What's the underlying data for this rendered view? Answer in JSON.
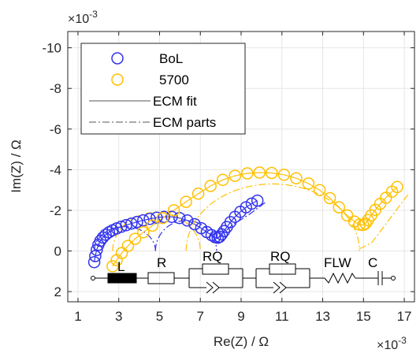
{
  "chart_data": {
    "type": "scatter",
    "title": "",
    "xlabel": "Re(Z)  /  Ω",
    "ylabel": "Im(Z)  /  Ω",
    "x_exponent_label": "×10",
    "x_exponent_power": "-3",
    "y_exponent_label": "×10",
    "y_exponent_power": "-3",
    "xlim": [
      0.5,
      17.5
    ],
    "ylim": [
      2.5,
      -10.8
    ],
    "y_reversed": true,
    "grid": true,
    "legend_position": "top-left",
    "xticks": [
      1,
      3,
      5,
      7,
      9,
      11,
      13,
      15,
      17
    ],
    "xtick_labels": [
      "1",
      "3",
      "5",
      "7",
      "9",
      "11",
      "13",
      "15",
      "17"
    ],
    "yticks": [
      2,
      0,
      -2,
      -4,
      -6,
      -8,
      -10
    ],
    "ytick_labels": [
      "2",
      "0",
      "-2",
      "-4",
      "-6",
      "-8",
      "-10"
    ],
    "series": [
      {
        "name": "BoL",
        "marker": "circle",
        "color": "#3333ee",
        "x": [
          1.8,
          1.85,
          1.92,
          2.0,
          2.1,
          2.22,
          2.36,
          2.52,
          2.7,
          2.9,
          3.12,
          3.36,
          3.62,
          3.9,
          4.2,
          4.52,
          4.86,
          5.22,
          5.6,
          5.98,
          6.36,
          6.72,
          7.04,
          7.32,
          7.55,
          7.72,
          7.85,
          7.95,
          8.05,
          8.16,
          8.3,
          8.48,
          8.7,
          8.96,
          9.24,
          9.52,
          9.8
        ],
        "y": [
          0.55,
          0.25,
          -0.05,
          -0.3,
          -0.5,
          -0.66,
          -0.8,
          -0.92,
          -1.02,
          -1.11,
          -1.19,
          -1.27,
          -1.35,
          -1.43,
          -1.51,
          -1.58,
          -1.64,
          -1.68,
          -1.68,
          -1.62,
          -1.5,
          -1.32,
          -1.12,
          -0.93,
          -0.78,
          -0.68,
          -0.65,
          -0.7,
          -0.82,
          -0.98,
          -1.18,
          -1.42,
          -1.68,
          -1.93,
          -2.15,
          -2.33,
          -2.48
        ]
      },
      {
        "name": "5700",
        "marker": "circle",
        "color": "#ffc000",
        "x": [
          2.7,
          2.9,
          3.15,
          3.45,
          3.8,
          4.2,
          4.65,
          5.15,
          5.7,
          6.3,
          6.9,
          7.5,
          8.1,
          8.7,
          9.3,
          9.9,
          10.5,
          11.1,
          11.7,
          12.3,
          12.85,
          13.35,
          13.8,
          14.2,
          14.55,
          14.8,
          14.98,
          15.1,
          15.22,
          15.38,
          15.58,
          15.82,
          16.1,
          16.4,
          16.65
        ],
        "y": [
          0.75,
          0.45,
          0.1,
          -0.25,
          -0.6,
          -0.92,
          -1.25,
          -1.62,
          -2.0,
          -2.42,
          -2.82,
          -3.2,
          -3.5,
          -3.7,
          -3.82,
          -3.86,
          -3.84,
          -3.75,
          -3.58,
          -3.32,
          -3.0,
          -2.6,
          -2.15,
          -1.75,
          -1.45,
          -1.3,
          -1.28,
          -1.35,
          -1.52,
          -1.75,
          -2.02,
          -2.32,
          -2.62,
          -2.92,
          -3.15
        ]
      },
      {
        "name": "ECM fit",
        "line_style": "solid",
        "color": "#555555",
        "x": [],
        "y": []
      },
      {
        "name": "ECM parts",
        "line_style": "dash-dot",
        "color": "#555555",
        "x": [],
        "y": []
      }
    ],
    "annotations": {
      "circuit_labels": [
        "L",
        "R",
        "RQ",
        "RQ",
        "FLW",
        "C"
      ]
    }
  }
}
